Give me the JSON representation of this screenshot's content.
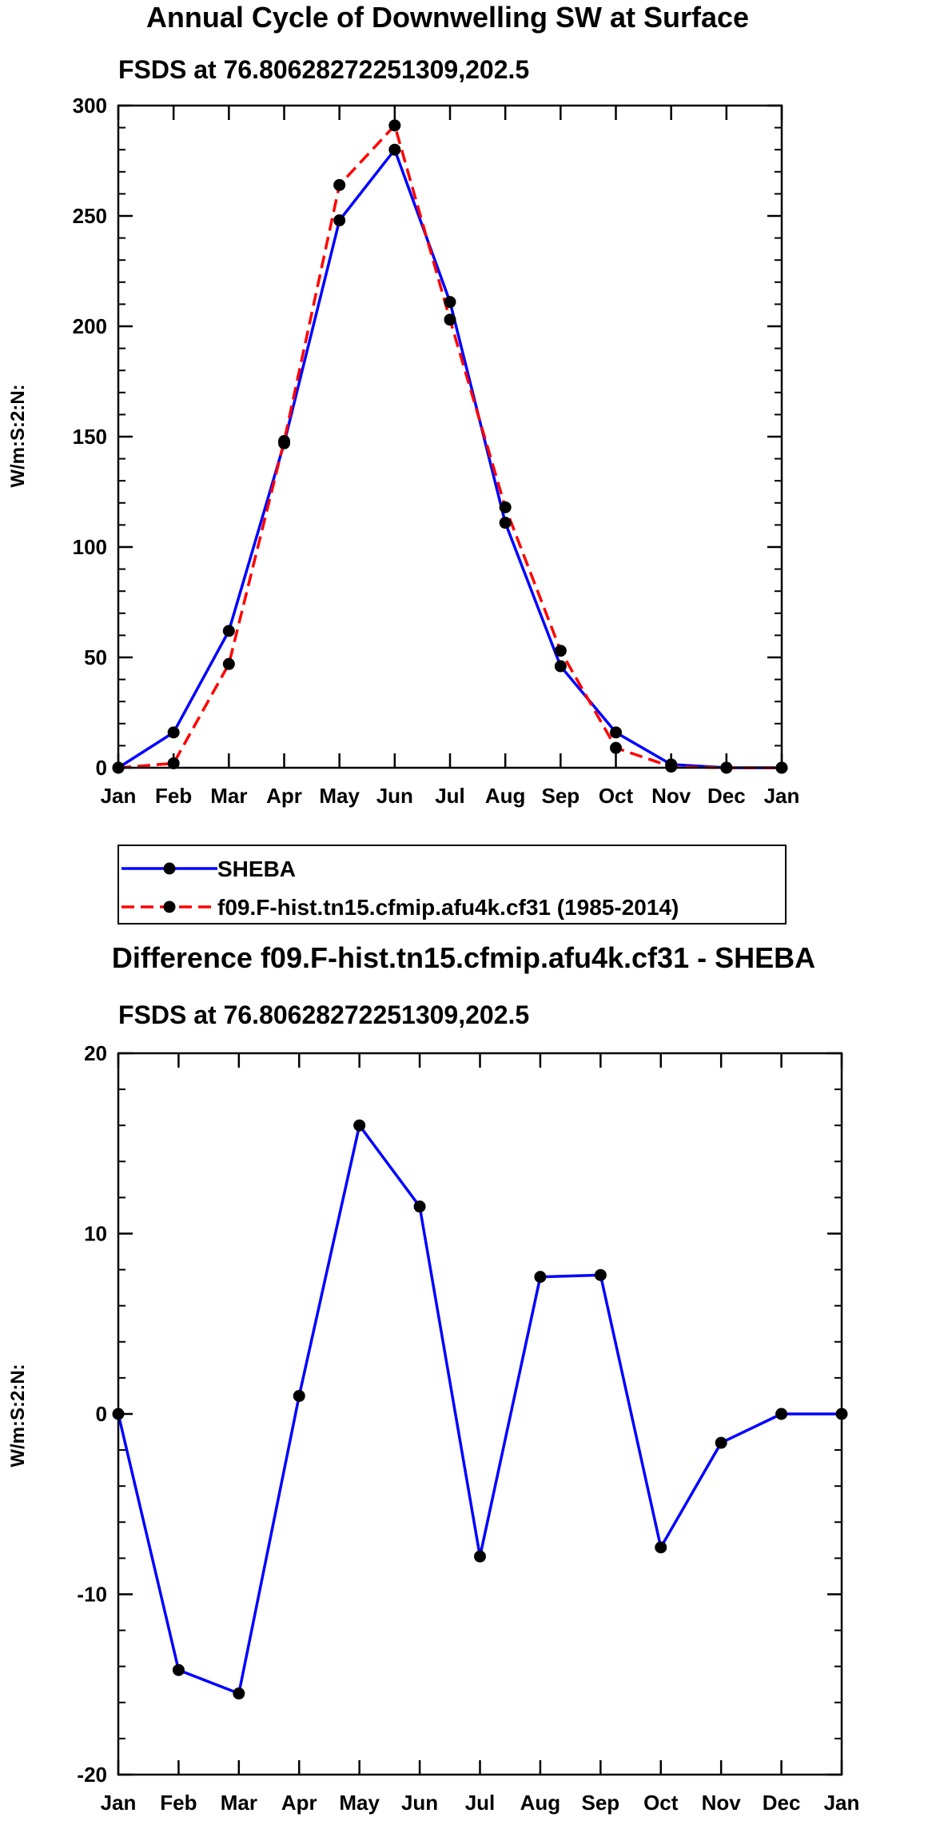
{
  "chart_data": [
    {
      "type": "line",
      "title": "Annual Cycle of Downwelling SW at Surface",
      "subtitle": "FSDS at 76.80628272251309,202.5",
      "xlabel": "",
      "ylabel": "W/m:S:2:N:",
      "categories": [
        "Jan",
        "Feb",
        "Mar",
        "Apr",
        "May",
        "Jun",
        "Jul",
        "Aug",
        "Sep",
        "Oct",
        "Nov",
        "Dec",
        "Jan"
      ],
      "ylim": [
        0,
        300
      ],
      "yticks": [
        0,
        50,
        100,
        150,
        200,
        250,
        300
      ],
      "ytick_labels": [
        "0",
        "50",
        "100",
        "150",
        "200",
        "250",
        "300"
      ],
      "legend": {
        "placement": "bottom"
      },
      "series": [
        {
          "name": "SHEBA",
          "color": "#0000ff",
          "style": "solid",
          "values": [
            0,
            16,
            62,
            147,
            248,
            280,
            211,
            111,
            46,
            16,
            1.5,
            0,
            0
          ]
        },
        {
          "name": "f09.F-hist.tn15.cfmip.afu4k.cf31 (1985-2014)",
          "color": "#ff0000",
          "style": "dashed",
          "values": [
            0,
            2,
            47,
            148,
            264,
            291,
            203,
            118,
            53,
            9,
            0.5,
            0,
            0
          ]
        }
      ]
    },
    {
      "type": "line",
      "title": "Difference f09.F-hist.tn15.cfmip.afu4k.cf31 - SHEBA",
      "subtitle": "FSDS at 76.80628272251309,202.5",
      "xlabel": "",
      "ylabel": "W/m:S:2:N:",
      "categories": [
        "Jan",
        "Feb",
        "Mar",
        "Apr",
        "May",
        "Jun",
        "Jul",
        "Aug",
        "Sep",
        "Oct",
        "Nov",
        "Dec",
        "Jan"
      ],
      "ylim": [
        -20,
        20
      ],
      "yticks": [
        -20,
        -10,
        0,
        10,
        20
      ],
      "ytick_labels": [
        "-20",
        "-10",
        "0",
        "10",
        "20"
      ],
      "series": [
        {
          "name": "Difference",
          "color": "#0000ff",
          "style": "solid",
          "values": [
            0,
            -14.2,
            -15.5,
            1.0,
            16.0,
            11.5,
            -7.9,
            7.6,
            7.7,
            -7.4,
            -1.6,
            0,
            0
          ]
        }
      ]
    }
  ]
}
